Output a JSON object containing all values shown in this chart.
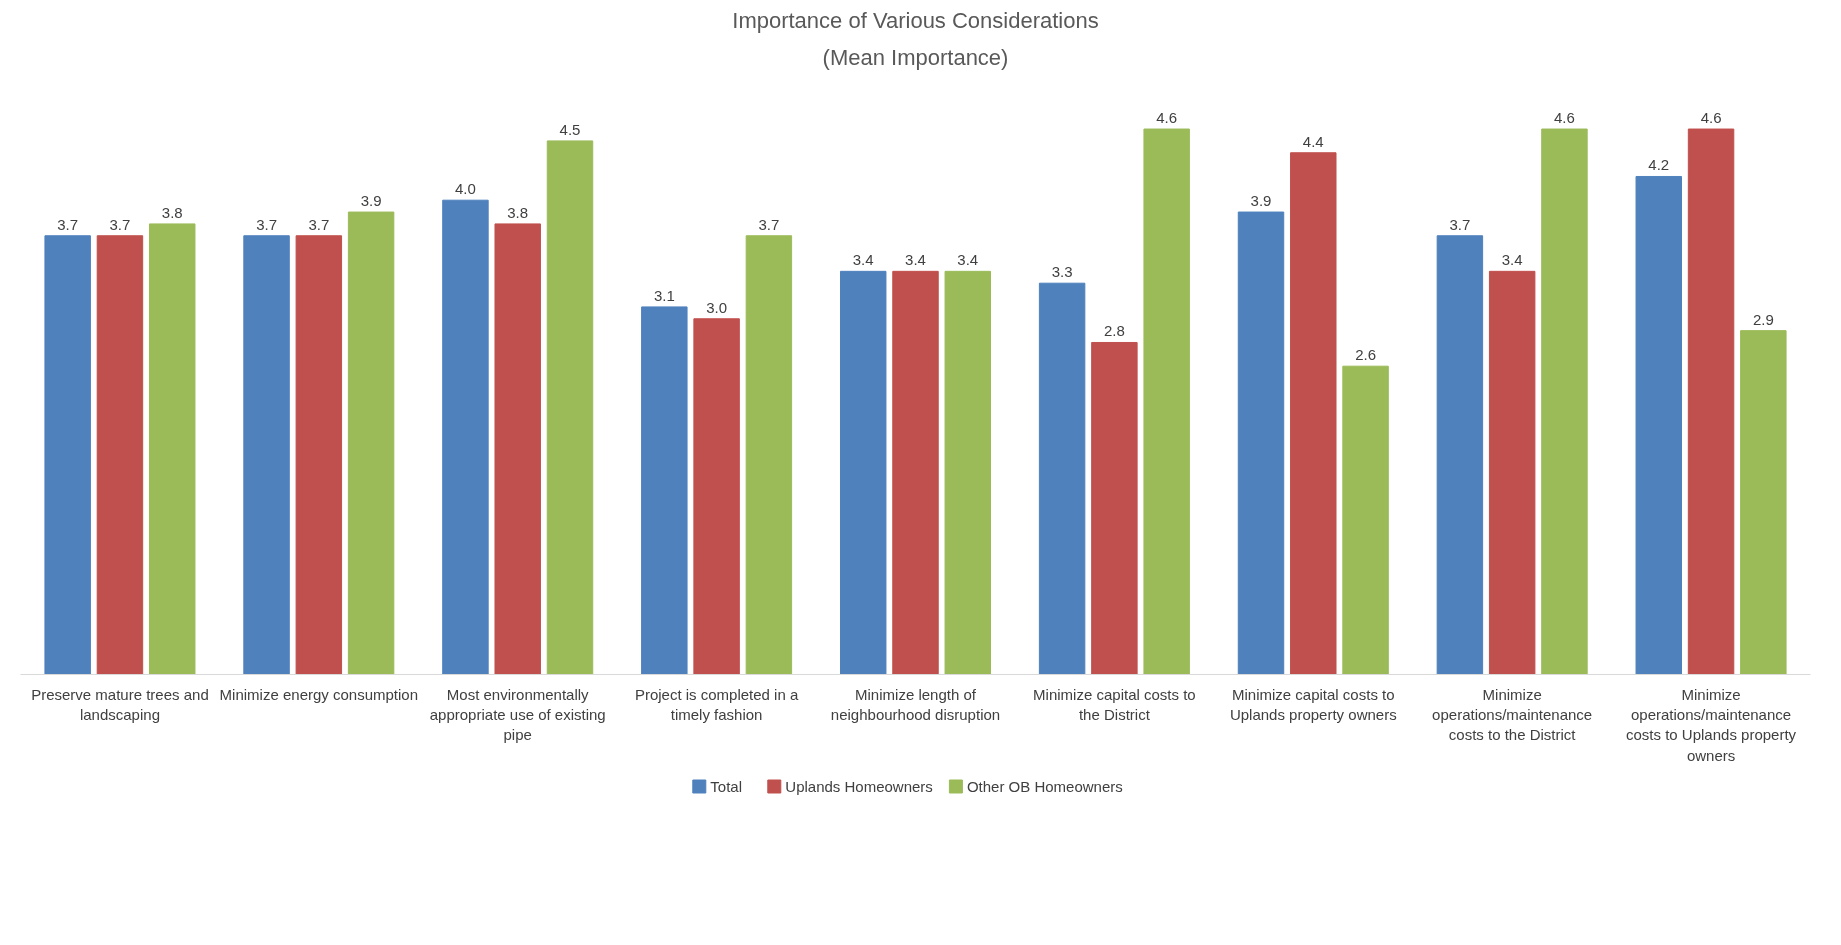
{
  "chart_data": {
    "type": "bar",
    "title": "Importance of Various Considerations",
    "subtitle": "(Mean Importance)",
    "categories": [
      "Preserve mature trees and landscaping",
      "Minimize energy consumption",
      "Most environmentally appropriate use of existing pipe",
      "Project is completed in a timely fashion",
      "Minimize length of neighbourhood disruption",
      "Minimize capital costs to the District",
      "Minimize capital costs to Uplands property owners",
      "Minimize operations/maintenance costs to the District",
      "Minimize operations/maintenance costs to Uplands property owners"
    ],
    "series": [
      {
        "name": "Total",
        "color": "#4f81bd",
        "values": [
          3.7,
          3.7,
          4.0,
          3.1,
          3.4,
          3.3,
          3.9,
          3.7,
          4.2
        ],
        "value_labels": [
          "3.7",
          "3.7",
          "4.0",
          "3.1",
          "3.4",
          "3.3",
          "3.9",
          "3.7",
          "4.2"
        ]
      },
      {
        "name": "Uplands Homeowners",
        "color": "#c0504d",
        "values": [
          3.7,
          3.7,
          3.8,
          3.0,
          3.4,
          2.8,
          4.4,
          3.4,
          4.6
        ],
        "value_labels": [
          "3.7",
          "3.7",
          "3.8",
          "3.0",
          "3.4",
          "2.8",
          "4.4",
          "3.4",
          "4.6"
        ]
      },
      {
        "name": "Other OB Homeowners",
        "color": "#9bbb59",
        "values": [
          3.8,
          3.9,
          4.5,
          3.7,
          3.4,
          4.6,
          2.6,
          4.6,
          2.9
        ],
        "value_labels": [
          "3.8",
          "3.9",
          "4.5",
          "3.7",
          "3.4",
          "4.6",
          "2.6",
          "4.6",
          "2.9"
        ]
      }
    ],
    "grid": false,
    "legend": "bottom",
    "tick_labels": "x"
  }
}
